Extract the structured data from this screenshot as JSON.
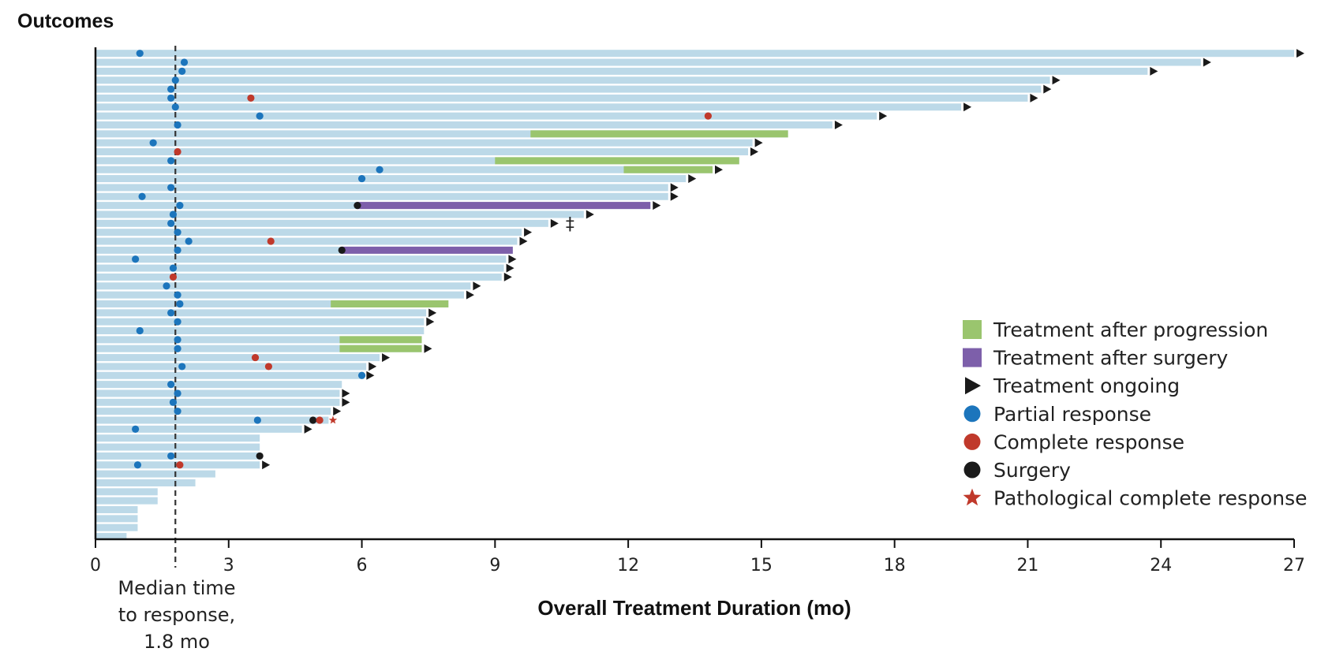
{
  "chart_data": {
    "type": "bar",
    "orientation": "horizontal",
    "ylabel": "Outcomes",
    "xlabel": "Overall Treatment Duration (mo)",
    "xlim": [
      0,
      27
    ],
    "xticks": [
      0,
      3,
      6,
      9,
      12,
      15,
      18,
      21,
      24,
      27
    ],
    "median_line": {
      "value": 1.8,
      "lines": [
        "Median time",
        "to response,",
        "1.8 mo"
      ]
    },
    "legend": {
      "position": "right",
      "items": [
        {
          "key": "progression",
          "label": "Treatment after progression",
          "color": "#9ac56e"
        },
        {
          "key": "surgery_tx",
          "label": "Treatment after surgery",
          "color": "#7d5faa"
        },
        {
          "key": "ongoing",
          "label": "Treatment ongoing",
          "color": "#1a1a1a"
        },
        {
          "key": "pr",
          "label": "Partial response",
          "color": "#1c75bc"
        },
        {
          "key": "cr",
          "label": "Complete response",
          "color": "#c0392b"
        },
        {
          "key": "surgery",
          "label": "Surgery",
          "color": "#1a1a1a"
        },
        {
          "key": "pcr",
          "label": "Pathological complete response",
          "color": "#c0392b"
        }
      ]
    },
    "special_symbol": {
      "row": 19,
      "text": "‡"
    },
    "bar_color": "#bcd9e8",
    "patients": [
      {
        "duration": 27.0,
        "ongoing": true,
        "pr": [
          1.0
        ]
      },
      {
        "duration": 24.9,
        "ongoing": true,
        "pr": [
          2.0
        ]
      },
      {
        "duration": 23.7,
        "ongoing": true,
        "pr": [
          1.95
        ]
      },
      {
        "duration": 21.5,
        "ongoing": true,
        "pr": [
          1.8
        ]
      },
      {
        "duration": 21.3,
        "ongoing": true,
        "pr": [
          1.7
        ]
      },
      {
        "duration": 21.0,
        "ongoing": true,
        "pr": [
          1.7
        ],
        "cr": [
          3.5
        ]
      },
      {
        "duration": 19.5,
        "ongoing": true,
        "pr": [
          1.8
        ]
      },
      {
        "duration": 17.6,
        "ongoing": true,
        "pr": [
          3.7
        ],
        "cr": [
          13.8
        ]
      },
      {
        "duration": 16.6,
        "ongoing": true,
        "pr": [
          1.85
        ]
      },
      {
        "duration": 15.6,
        "ongoing": false,
        "progression": [
          9.8,
          15.6
        ]
      },
      {
        "duration": 14.8,
        "ongoing": true,
        "pr": [
          1.3
        ]
      },
      {
        "duration": 14.7,
        "ongoing": true,
        "cr": [
          1.85
        ]
      },
      {
        "duration": 14.5,
        "ongoing": false,
        "pr": [
          1.7
        ],
        "progression": [
          9.0,
          14.5
        ]
      },
      {
        "duration": 13.9,
        "ongoing": true,
        "pr": [
          6.4
        ],
        "progression": [
          11.9,
          13.9
        ]
      },
      {
        "duration": 13.3,
        "ongoing": true,
        "pr": [
          6.0
        ]
      },
      {
        "duration": 12.9,
        "ongoing": true,
        "pr": [
          1.7
        ]
      },
      {
        "duration": 12.9,
        "ongoing": true,
        "pr": [
          1.05
        ]
      },
      {
        "duration": 12.5,
        "ongoing": true,
        "pr": [
          1.9
        ],
        "surgery": [
          5.9
        ],
        "surgery_tx": [
          5.9,
          12.5
        ]
      },
      {
        "duration": 11.0,
        "ongoing": true,
        "pr": [
          1.75
        ]
      },
      {
        "duration": 10.2,
        "ongoing": true,
        "pr": [
          1.7
        ]
      },
      {
        "duration": 9.6,
        "ongoing": true,
        "pr": [
          1.85
        ]
      },
      {
        "duration": 9.5,
        "ongoing": true,
        "pr": [
          2.1
        ],
        "cr": [
          3.95
        ]
      },
      {
        "duration": 9.4,
        "ongoing": false,
        "pr": [
          1.85
        ],
        "surgery": [
          5.55
        ],
        "surgery_tx": [
          5.55,
          9.4
        ]
      },
      {
        "duration": 9.25,
        "ongoing": true,
        "pr": [
          0.9
        ]
      },
      {
        "duration": 9.2,
        "ongoing": true,
        "pr": [
          1.75
        ]
      },
      {
        "duration": 9.15,
        "ongoing": true,
        "cr": [
          1.75
        ]
      },
      {
        "duration": 8.45,
        "ongoing": true,
        "pr": [
          1.6
        ]
      },
      {
        "duration": 8.3,
        "ongoing": true,
        "pr": [
          1.85
        ]
      },
      {
        "duration": 7.95,
        "ongoing": false,
        "pr": [
          1.9
        ],
        "progression": [
          5.3,
          7.95
        ]
      },
      {
        "duration": 7.45,
        "ongoing": true,
        "pr": [
          1.7
        ]
      },
      {
        "duration": 7.4,
        "ongoing": true,
        "pr": [
          1.85
        ]
      },
      {
        "duration": 7.4,
        "ongoing": false,
        "pr": [
          1.0
        ]
      },
      {
        "duration": 7.35,
        "ongoing": false,
        "pr": [
          1.85
        ],
        "progression": [
          5.5,
          7.35
        ]
      },
      {
        "duration": 7.35,
        "ongoing": true,
        "pr": [
          1.85
        ],
        "progression": [
          5.5,
          7.35
        ]
      },
      {
        "duration": 6.4,
        "ongoing": true,
        "cr": [
          3.6
        ]
      },
      {
        "duration": 6.1,
        "ongoing": true,
        "pr": [
          1.95
        ],
        "cr": [
          3.9
        ]
      },
      {
        "duration": 6.05,
        "ongoing": true,
        "pr": [
          6.0
        ]
      },
      {
        "duration": 5.55,
        "ongoing": false,
        "pr": [
          1.7
        ]
      },
      {
        "duration": 5.5,
        "ongoing": true,
        "pr": [
          1.85
        ]
      },
      {
        "duration": 5.5,
        "ongoing": true,
        "pr": [
          1.75
        ]
      },
      {
        "duration": 5.3,
        "ongoing": true,
        "pr": [
          1.85
        ]
      },
      {
        "duration": 5.25,
        "ongoing": false,
        "pr": [
          3.65
        ],
        "cr": [
          5.05
        ],
        "surgery": [
          4.9
        ],
        "pcr": [
          5.35
        ]
      },
      {
        "duration": 4.65,
        "ongoing": true,
        "pr": [
          0.9
        ]
      },
      {
        "duration": 3.7,
        "ongoing": false
      },
      {
        "duration": 3.7,
        "ongoing": false
      },
      {
        "duration": 3.7,
        "ongoing": false,
        "pr": [
          1.7
        ],
        "surgery": [
          3.7
        ]
      },
      {
        "duration": 3.7,
        "ongoing": true,
        "pr": [
          0.95
        ],
        "cr": [
          1.9
        ]
      },
      {
        "duration": 2.7,
        "ongoing": false
      },
      {
        "duration": 2.25,
        "ongoing": false
      },
      {
        "duration": 1.4,
        "ongoing": false
      },
      {
        "duration": 1.4,
        "ongoing": false
      },
      {
        "duration": 0.95,
        "ongoing": false
      },
      {
        "duration": 0.95,
        "ongoing": false
      },
      {
        "duration": 0.95,
        "ongoing": false
      },
      {
        "duration": 0.7,
        "ongoing": false
      }
    ]
  }
}
